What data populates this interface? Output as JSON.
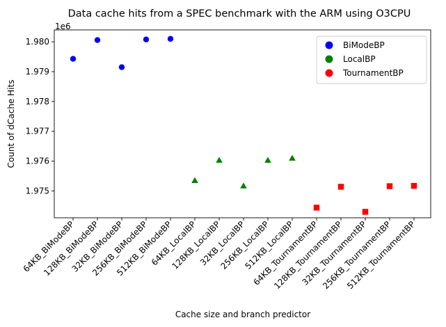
{
  "chart_data": {
    "type": "scatter",
    "title": "Data cache hits from a SPEC benchmark with the ARM using O3CPU",
    "xlabel": "Cache size and branch predictor",
    "ylabel": "Count of dCache Hits",
    "y_offset_label": "1e6",
    "y_scale": 1000000,
    "ylim": [
      1974100,
      1980400
    ],
    "yticks": [
      1975000,
      1976000,
      1977000,
      1978000,
      1979000,
      1980000
    ],
    "ytick_labels": [
      "1.975",
      "1.976",
      "1.977",
      "1.978",
      "1.979",
      "1.980"
    ],
    "categories": [
      "64KB_BiModeBP",
      "128KB_BiModeBP",
      "32KB_BiModeBP",
      "256KB_BiModeBP",
      "512KB_BiModeBP",
      "64KB_LocalBP",
      "128KB_LocalBP",
      "32KB_LocalBP",
      "256KB_LocalBP",
      "512KB_LocalBP",
      "64KB_TournamentBP",
      "128KB_TournamentBP",
      "32KB_TournamentBP",
      "256KB_TournamentBP",
      "512KB_TournamentBP"
    ],
    "legend_position": "top-right",
    "grid": false,
    "series": [
      {
        "name": "BiModeBP",
        "color": "#0000ff",
        "marker": "circle",
        "x": [
          "64KB_BiModeBP",
          "128KB_BiModeBP",
          "32KB_BiModeBP",
          "256KB_BiModeBP",
          "512KB_BiModeBP"
        ],
        "values": [
          1979430,
          1980060,
          1979150,
          1980080,
          1980100
        ]
      },
      {
        "name": "LocalBP",
        "color": "#008000",
        "marker": "triangle",
        "x": [
          "64KB_LocalBP",
          "128KB_LocalBP",
          "32KB_LocalBP",
          "256KB_LocalBP",
          "512KB_LocalBP"
        ],
        "values": [
          1975350,
          1976030,
          1975170,
          1976030,
          1976100
        ]
      },
      {
        "name": "TournamentBP",
        "color": "#ff0000",
        "marker": "square",
        "x": [
          "64KB_TournamentBP",
          "128KB_TournamentBP",
          "32KB_TournamentBP",
          "256KB_TournamentBP",
          "512KB_TournamentBP"
        ],
        "values": [
          1974440,
          1975140,
          1974300,
          1975160,
          1975170
        ]
      }
    ]
  }
}
